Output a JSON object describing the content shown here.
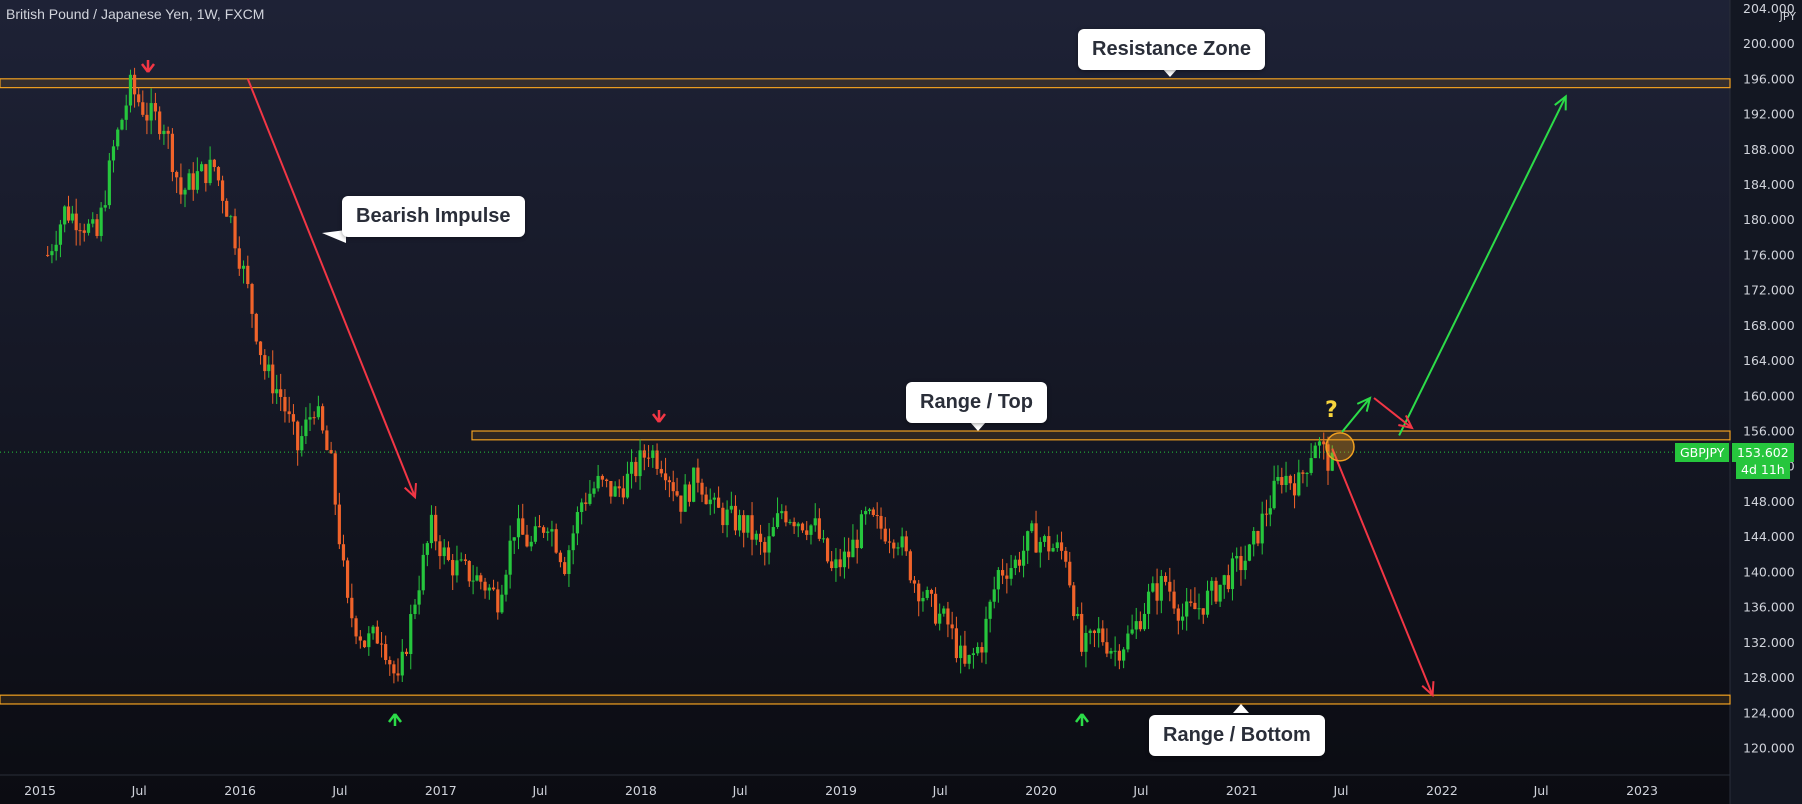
{
  "header": {
    "symbol_title": "British Pound / Japanese Yen, 1W, FXCM"
  },
  "price_axis": {
    "currency": "JPY",
    "ticks": [
      "204.000",
      "200.000",
      "196.000",
      "192.000",
      "188.000",
      "184.000",
      "180.000",
      "176.000",
      "172.000",
      "168.000",
      "164.000",
      "160.000",
      "156.000",
      "152.000",
      "148.000",
      "144.000",
      "140.000",
      "136.000",
      "132.000",
      "128.000",
      "124.000",
      "120.000"
    ],
    "symbol_badge": "GBPJPY",
    "last_price": "153.602",
    "countdown": "4d 11h"
  },
  "annotations": {
    "resistance_zone": "Resistance Zone",
    "bearish_impulse": "Bearish Impulse",
    "range_top": "Range / Top",
    "range_bottom": "Range / Bottom",
    "question_mark": "?"
  },
  "colors": {
    "background_top": "#1e2236",
    "background_bottom": "#0b0c12",
    "up_candle": "#26c63d",
    "down_candle": "#f0632a",
    "zone_border": "#f0a020",
    "arrow_bearish": "#f23645",
    "arrow_bullish": "#2cdc48",
    "question": "#f7d43d"
  },
  "chart_data": {
    "type": "candlestick",
    "title": "British Pound / Japanese Yen, 1W, FXCM",
    "x_axis_labels": [
      "2015",
      "Jul",
      "2016",
      "Jul",
      "2017",
      "Jul",
      "2018",
      "Jul",
      "2019",
      "Jul",
      "2020",
      "Jul",
      "2021",
      "Jul",
      "2022",
      "Jul",
      "2023"
    ],
    "x_axis_dates": [
      "2015-01",
      "2015-07",
      "2016-01",
      "2016-07",
      "2017-01",
      "2017-07",
      "2018-01",
      "2018-07",
      "2019-01",
      "2019-07",
      "2020-01",
      "2020-07",
      "2021-01",
      "2021-07",
      "2022-01",
      "2022-07",
      "2023-01"
    ],
    "ylim": [
      118.5,
      204.5
    ],
    "last_price": 153.602,
    "price_path_weekly_closes_approx": [
      [
        "2015-01",
        176
      ],
      [
        "2015-02",
        181
      ],
      [
        "2015-03",
        180
      ],
      [
        "2015-04",
        178
      ],
      [
        "2015-05",
        188
      ],
      [
        "2015-06",
        195
      ],
      [
        "2015-07",
        192
      ],
      [
        "2015-08",
        191
      ],
      [
        "2015-09",
        183
      ],
      [
        "2015-10",
        185
      ],
      [
        "2015-11",
        186
      ],
      [
        "2015-12",
        180
      ],
      [
        "2016-01",
        172
      ],
      [
        "2016-02",
        163
      ],
      [
        "2016-03",
        160
      ],
      [
        "2016-04",
        154
      ],
      [
        "2016-05",
        159
      ],
      [
        "2016-06",
        152
      ],
      [
        "2016-07",
        136
      ],
      [
        "2016-08",
        132
      ],
      [
        "2016-09",
        133
      ],
      [
        "2016-10",
        127
      ],
      [
        "2016-11",
        137
      ],
      [
        "2016-12",
        145
      ],
      [
        "2017-01",
        141
      ],
      [
        "2017-02",
        140
      ],
      [
        "2017-03",
        139
      ],
      [
        "2017-04",
        137
      ],
      [
        "2017-05",
        145
      ],
      [
        "2017-06",
        143
      ],
      [
        "2017-07",
        146
      ],
      [
        "2017-08",
        141
      ],
      [
        "2017-09",
        148
      ],
      [
        "2017-10",
        150
      ],
      [
        "2017-11",
        149
      ],
      [
        "2017-12",
        151
      ],
      [
        "2018-01",
        154
      ],
      [
        "2018-02",
        152
      ],
      [
        "2018-03",
        148
      ],
      [
        "2018-04",
        151
      ],
      [
        "2018-05",
        147
      ],
      [
        "2018-06",
        146
      ],
      [
        "2018-07",
        145
      ],
      [
        "2018-08",
        142
      ],
      [
        "2018-09",
        147
      ],
      [
        "2018-10",
        146
      ],
      [
        "2018-11",
        145
      ],
      [
        "2018-12",
        140
      ],
      [
        "2019-01",
        142
      ],
      [
        "2019-02",
        146
      ],
      [
        "2019-03",
        145
      ],
      [
        "2019-04",
        144
      ],
      [
        "2019-05",
        139
      ],
      [
        "2019-06",
        136
      ],
      [
        "2019-07",
        134
      ],
      [
        "2019-08",
        129
      ],
      [
        "2019-09",
        132
      ],
      [
        "2019-10",
        140
      ],
      [
        "2019-11",
        141
      ],
      [
        "2019-12",
        144
      ],
      [
        "2020-01",
        143
      ],
      [
        "2020-02",
        142
      ],
      [
        "2020-03",
        131
      ],
      [
        "2020-04",
        133
      ],
      [
        "2020-05",
        131
      ],
      [
        "2020-06",
        133
      ],
      [
        "2020-07",
        137
      ],
      [
        "2020-08",
        139
      ],
      [
        "2020-09",
        135
      ],
      [
        "2020-10",
        136
      ],
      [
        "2020-11",
        138
      ],
      [
        "2020-12",
        140
      ],
      [
        "2021-01",
        142
      ],
      [
        "2021-02",
        147
      ],
      [
        "2021-03",
        151
      ],
      [
        "2021-04",
        150
      ],
      [
        "2021-05",
        155
      ],
      [
        "2021-06",
        152
      ],
      [
        "2021-06-25",
        153.602
      ]
    ],
    "zones": [
      {
        "name": "Resistance Zone",
        "low": 195,
        "high": 196
      },
      {
        "name": "Range / Top",
        "low": 155,
        "high": 156
      },
      {
        "name": "Range / Bottom",
        "low": 125,
        "high": 126
      }
    ],
    "arrows": [
      {
        "name": "bearish impulse",
        "from": [
          "2016-01",
          196
        ],
        "to": [
          "2016-11",
          148.5
        ]
      },
      {
        "name": "breakout up",
        "from": [
          "2021-10",
          155.5
        ],
        "to": [
          "2022-08",
          194
        ]
      },
      {
        "name": "breakdown",
        "from": [
          "2021-06",
          154
        ],
        "to": [
          "2021-12",
          126
        ]
      }
    ],
    "grid": false,
    "legend": "none"
  }
}
